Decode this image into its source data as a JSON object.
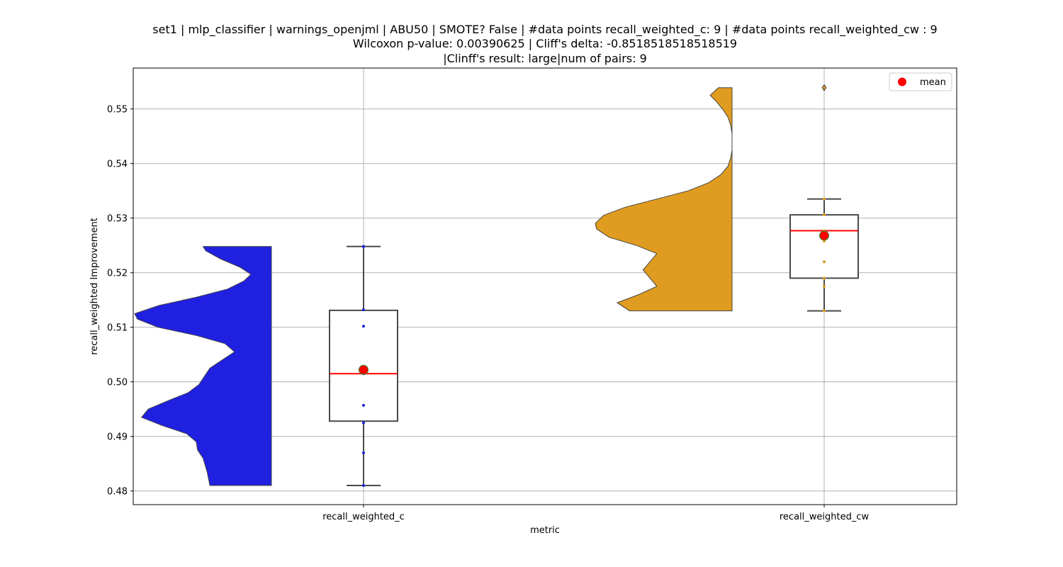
{
  "chart_data": {
    "type": "violin-box",
    "title_lines": [
      "set1 | mlp_classifier | warnings_openjml | ABU50 | SMOTE? False | #data points recall_weighted_c: 9 | #data points recall_weighted_cw : 9",
      "Wilcoxon p-value: 0.00390625 | Cliff's delta: -0.8518518518518519",
      "|Clinff's result: large|num of pairs: 9"
    ],
    "xlabel": "metric",
    "ylabel": "recall_weighted Improvement",
    "ylim": [
      0.4775,
      0.5575
    ],
    "yticks": [
      0.48,
      0.49,
      0.5,
      0.51,
      0.52,
      0.53,
      0.54,
      0.55
    ],
    "ytick_labels": [
      "0.48",
      "0.49",
      "0.50",
      "0.51",
      "0.52",
      "0.53",
      "0.54",
      "0.55"
    ],
    "categories": [
      "recall_weighted_c",
      "recall_weighted_cw"
    ],
    "grid": true,
    "legend": {
      "position": "top-right",
      "entries": [
        {
          "label": "mean",
          "color": "#ff0000"
        }
      ]
    },
    "series": [
      {
        "name": "recall_weighted_c",
        "violin_color": "#2020e0",
        "point_color": "#2020e0",
        "points": [
          0.481,
          0.487,
          0.4925,
          0.4957,
          0.5015,
          0.5102,
          0.5132,
          0.5248,
          0.5248
        ],
        "box": {
          "whisker_low": 0.481,
          "q1": 0.4928,
          "median": 0.5015,
          "q3": 0.5131,
          "whisker_high": 0.5248
        },
        "mean": 0.5022,
        "outliers": [],
        "density": [
          [
            0.481,
            0.45
          ],
          [
            0.4835,
            0.47
          ],
          [
            0.486,
            0.5
          ],
          [
            0.4875,
            0.54
          ],
          [
            0.489,
            0.55
          ],
          [
            0.4905,
            0.62
          ],
          [
            0.492,
            0.8
          ],
          [
            0.4935,
            0.95
          ],
          [
            0.495,
            0.9
          ],
          [
            0.4965,
            0.76
          ],
          [
            0.498,
            0.61
          ],
          [
            0.4995,
            0.53
          ],
          [
            0.501,
            0.49
          ],
          [
            0.5025,
            0.45
          ],
          [
            0.504,
            0.36
          ],
          [
            0.5055,
            0.27
          ],
          [
            0.507,
            0.34
          ],
          [
            0.5085,
            0.55
          ],
          [
            0.51,
            0.83
          ],
          [
            0.5115,
            0.98
          ],
          [
            0.5125,
            1.0
          ],
          [
            0.514,
            0.82
          ],
          [
            0.5155,
            0.55
          ],
          [
            0.517,
            0.32
          ],
          [
            0.5185,
            0.2
          ],
          [
            0.5197,
            0.15
          ],
          [
            0.521,
            0.23
          ],
          [
            0.5225,
            0.37
          ],
          [
            0.524,
            0.48
          ],
          [
            0.5248,
            0.5
          ]
        ]
      },
      {
        "name": "recall_weighted_cw",
        "violin_color": "#e09c20",
        "point_color": "#e09c20",
        "points": [
          0.513,
          0.5175,
          0.519,
          0.522,
          0.5258,
          0.5277,
          0.5306,
          0.5335,
          0.5539
        ],
        "box": {
          "whisker_low": 0.513,
          "q1": 0.519,
          "median": 0.5277,
          "q3": 0.5306,
          "whisker_high": 0.5335
        },
        "mean": 0.5268,
        "outliers": [
          0.5539
        ],
        "density": [
          [
            0.513,
            0.75
          ],
          [
            0.5145,
            0.84
          ],
          [
            0.516,
            0.68
          ],
          [
            0.5175,
            0.55
          ],
          [
            0.519,
            0.6
          ],
          [
            0.5205,
            0.65
          ],
          [
            0.522,
            0.6
          ],
          [
            0.5235,
            0.55
          ],
          [
            0.525,
            0.7
          ],
          [
            0.5265,
            0.9
          ],
          [
            0.528,
            0.99
          ],
          [
            0.529,
            1.0
          ],
          [
            0.5305,
            0.94
          ],
          [
            0.532,
            0.78
          ],
          [
            0.5335,
            0.55
          ],
          [
            0.535,
            0.32
          ],
          [
            0.5365,
            0.17
          ],
          [
            0.538,
            0.08
          ],
          [
            0.5395,
            0.03
          ],
          [
            0.541,
            0.01
          ],
          [
            0.5425,
            0.0
          ],
          [
            0.544,
            0.0
          ],
          [
            0.5455,
            0.0
          ],
          [
            0.547,
            0.01
          ],
          [
            0.5485,
            0.03
          ],
          [
            0.55,
            0.07
          ],
          [
            0.5515,
            0.12
          ],
          [
            0.5525,
            0.16
          ],
          [
            0.5539,
            0.1
          ]
        ]
      }
    ]
  }
}
